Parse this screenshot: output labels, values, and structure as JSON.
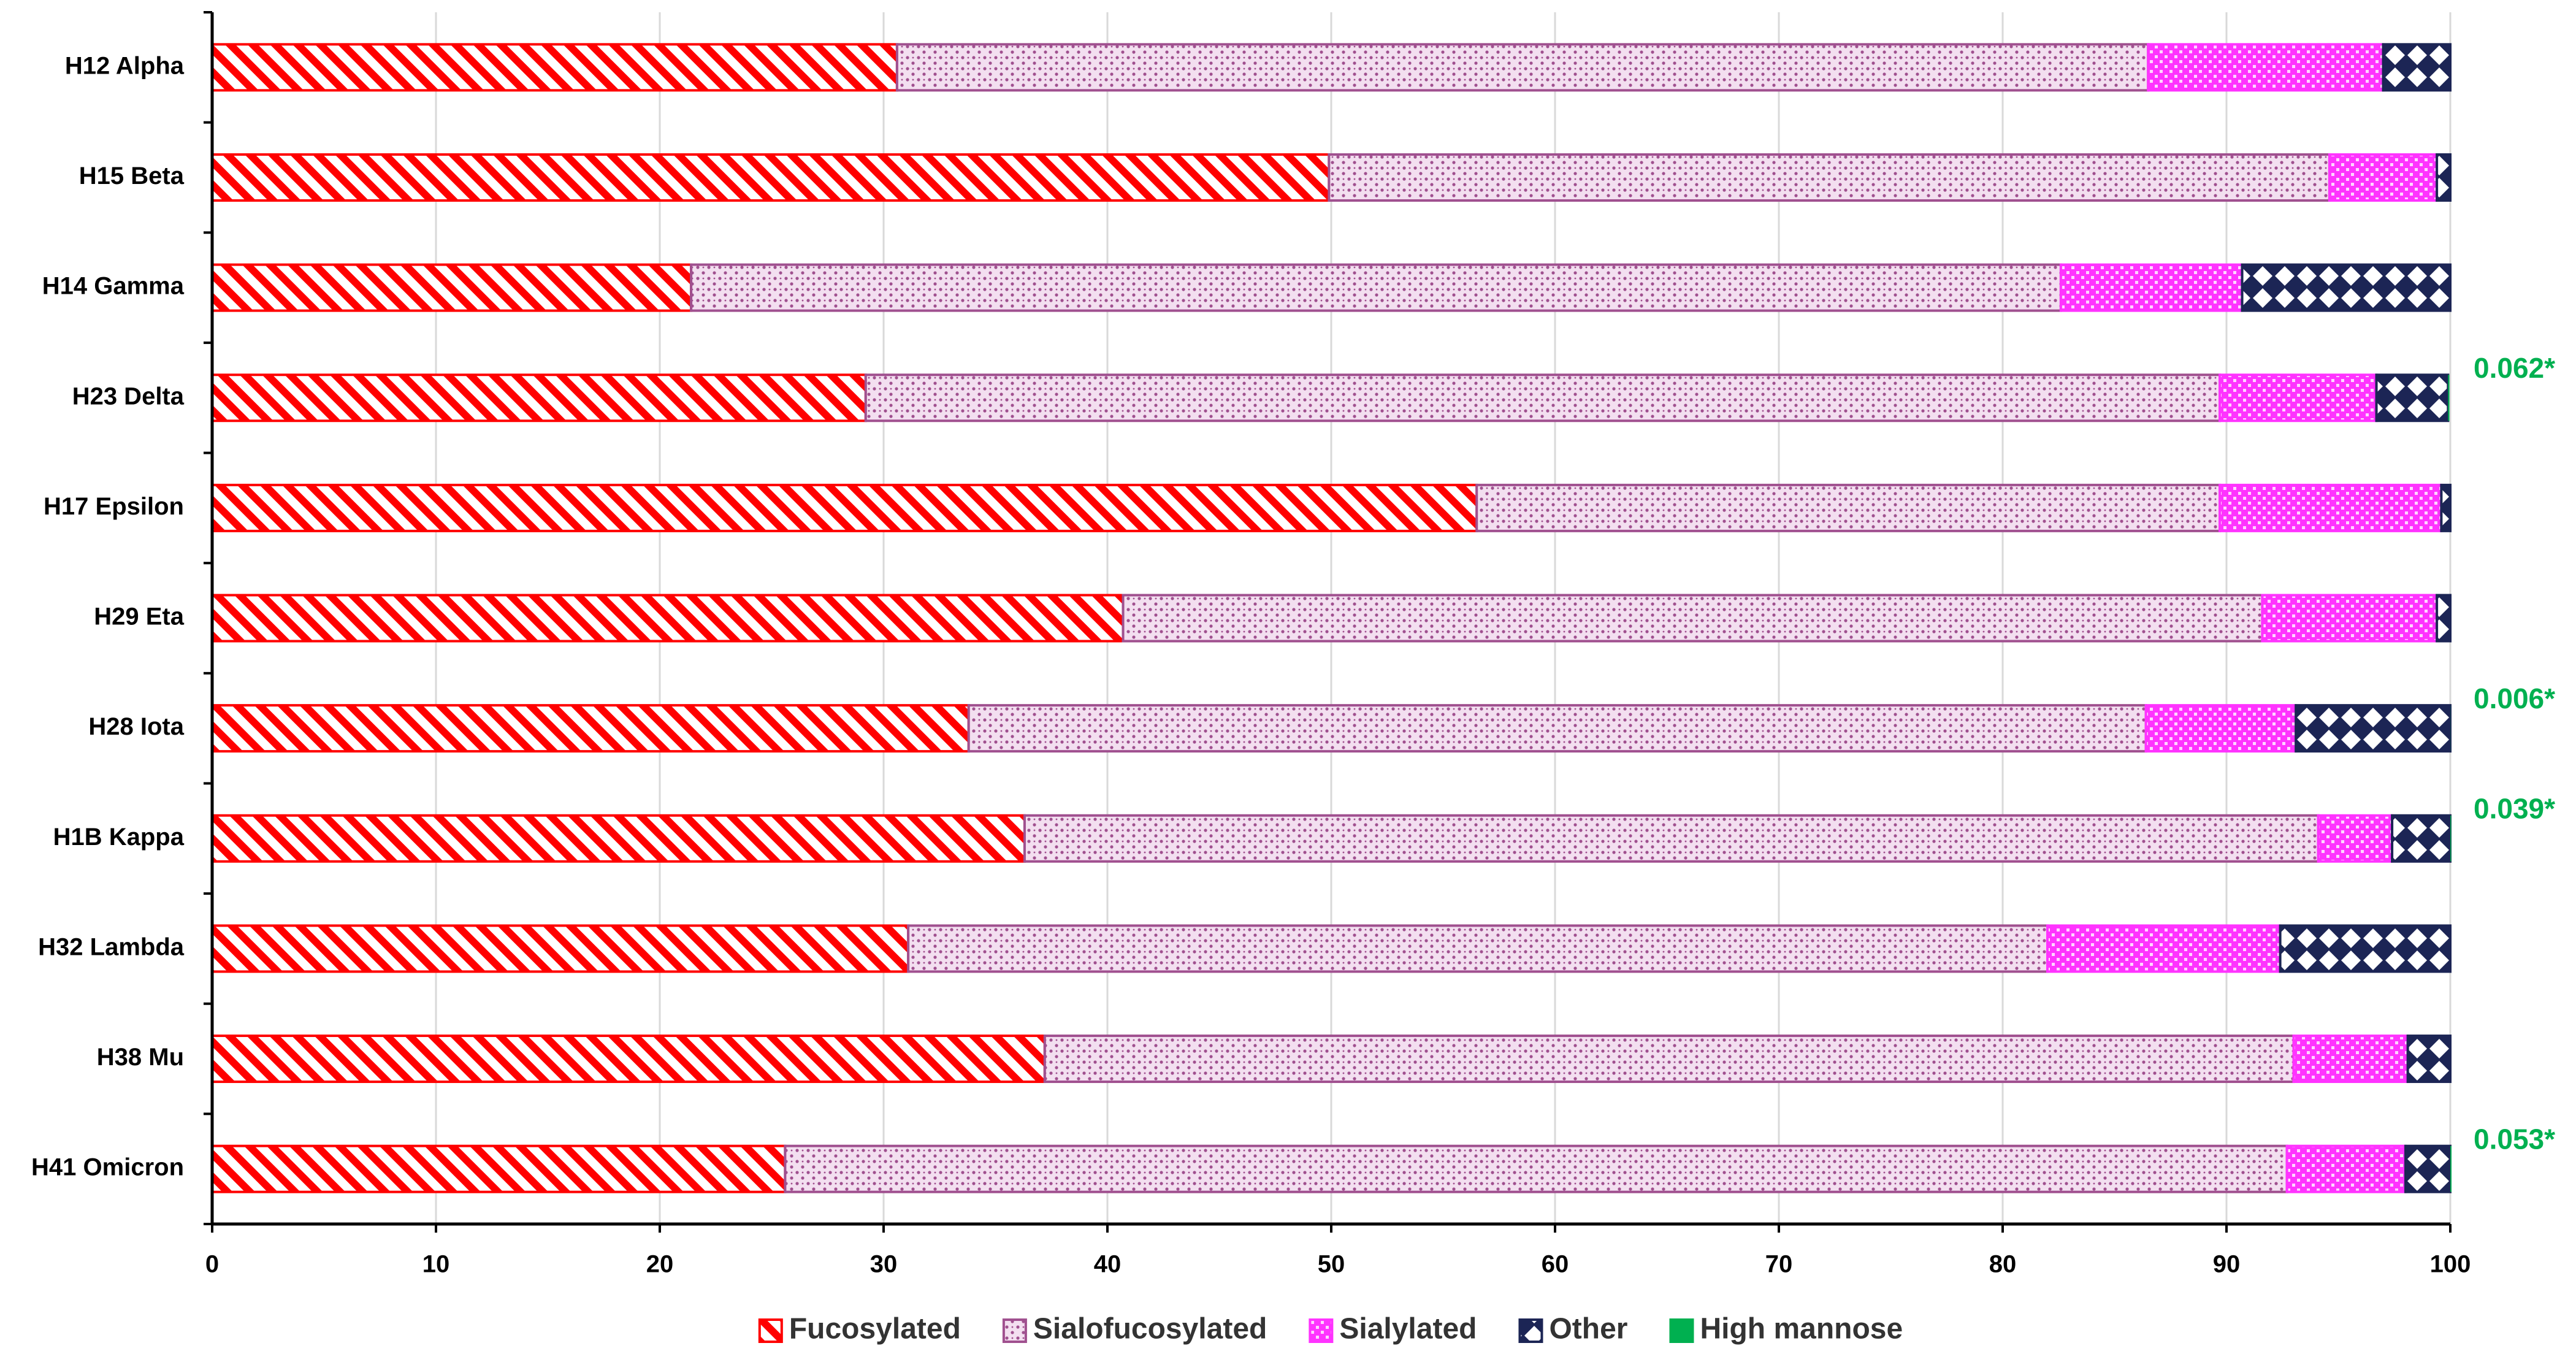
{
  "chart_data": {
    "type": "stacked-barh",
    "categories": [
      "H12 Alpha",
      "H15 Beta",
      "H14 Gamma",
      "H23 Delta",
      "H17 Epsilon",
      "H29 Eta",
      "H28 Iota",
      "H1B Kappa",
      "H32 Lambda",
      "H38 Mu",
      "H41 Omicron"
    ],
    "series": [
      {
        "name": "Fucosylated",
        "color": "#ff0000",
        "pattern": "diagonal",
        "values": [
          30.6,
          49.9,
          21.4,
          29.2,
          56.5,
          40.7,
          33.8,
          36.3,
          31.1,
          37.2,
          25.6
        ]
      },
      {
        "name": "Sialofucosylated",
        "color": "#a0508f",
        "pattern": "dots",
        "values": [
          55.9,
          44.7,
          61.2,
          60.5,
          33.2,
          50.9,
          52.6,
          57.8,
          50.9,
          55.8,
          67.1
        ]
      },
      {
        "name": "Sialylated",
        "color": "#ff33ff",
        "pattern": "checks",
        "values": [
          10.5,
          4.8,
          8.1,
          7.0,
          9.9,
          7.8,
          6.7,
          3.3,
          10.4,
          5.1,
          5.3
        ]
      },
      {
        "name": "Other",
        "color": "#1c2555",
        "pattern": "diamonds",
        "values": [
          3.0,
          0.6,
          9.3,
          3.2,
          0.4,
          0.6,
          6.9,
          2.6,
          7.6,
          1.9,
          2.0
        ]
      },
      {
        "name": "High mannose",
        "color": "#00b050",
        "pattern": "solid",
        "values": [
          0,
          0,
          0,
          0.062,
          0,
          0,
          0.006,
          0.039,
          0,
          0,
          0.053
        ],
        "value_labels": [
          null,
          null,
          null,
          "0.062*",
          null,
          null,
          "0.006*",
          "0.039*",
          null,
          null,
          "0.053*"
        ]
      }
    ],
    "xlim": [
      0,
      100
    ],
    "xticks": [
      0,
      10,
      20,
      30,
      40,
      50,
      60,
      70,
      80,
      90,
      100
    ],
    "grid": true,
    "legend": "bottom"
  }
}
